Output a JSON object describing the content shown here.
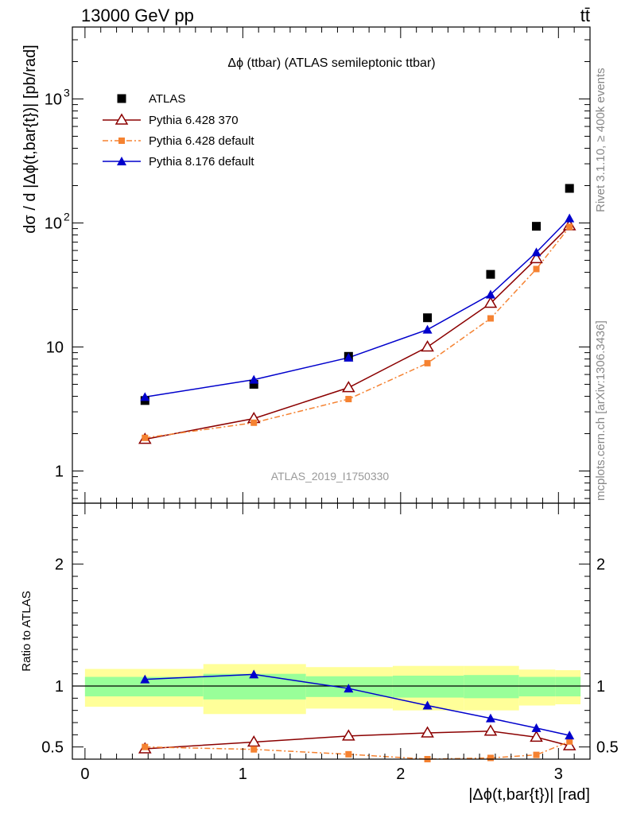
{
  "header": {
    "left_label": "13000 GeV pp",
    "right_label": "tt̄"
  },
  "side_labels": {
    "rivet": "Rivet 3.1.10, ≥ 400k events",
    "mcplots": "mcplots.cern.ch [arXiv:1306.3436]"
  },
  "colors": {
    "data": "#000000",
    "pythia6_370": "#8b0000",
    "pythia6_default": "#f58231",
    "pythia8": "#0000cc",
    "band_outer": "#ffff99",
    "band_inner": "#99ff99"
  },
  "chart_data": [
    {
      "type": "line",
      "panel": "main",
      "title": "Δϕ (ttbar) (ATLAS semileptonic ttbar)",
      "ylabel": "dσ / d |Δϕ(t,bar{t})| [pb/rad]",
      "watermark": "ATLAS_2019_I1750330",
      "yscale": "log",
      "xlim": [
        -0.08,
        3.2
      ],
      "ylim": [
        0.55,
        3800
      ],
      "yticks": [
        {
          "value": 1,
          "label": "1",
          "sup": ""
        },
        {
          "value": 10,
          "label": "10",
          "sup": ""
        },
        {
          "value": 100,
          "label": "10",
          "sup": "2"
        },
        {
          "value": 1000,
          "label": "10",
          "sup": "3"
        }
      ],
      "legend_position": "top-left",
      "series": [
        {
          "name": "ATLAS",
          "marker": "square",
          "x": [
            0.38,
            1.07,
            1.67,
            2.17,
            2.57,
            2.86,
            3.07
          ],
          "values": [
            3.7,
            5.0,
            8.4,
            17.2,
            38.5,
            94,
            190
          ]
        },
        {
          "name": "Pythia 6.428 370",
          "marker": "open-triangle",
          "x": [
            0.38,
            1.07,
            1.67,
            2.17,
            2.57,
            2.86,
            3.07
          ],
          "values": [
            1.8,
            2.65,
            4.7,
            10.0,
            22.5,
            51.5,
            95
          ]
        },
        {
          "name": "Pythia 6.428 default",
          "marker": "small-square",
          "x": [
            0.38,
            1.07,
            1.67,
            2.17,
            2.57,
            2.86,
            3.07
          ],
          "values": [
            1.85,
            2.45,
            3.8,
            7.4,
            17.0,
            42.5,
            93
          ]
        },
        {
          "name": "Pythia 8.176 default",
          "marker": "filled-triangle",
          "x": [
            0.38,
            1.07,
            1.67,
            2.17,
            2.57,
            2.86,
            3.07
          ],
          "values": [
            3.95,
            5.45,
            8.2,
            13.8,
            26.5,
            58,
            109
          ]
        }
      ]
    },
    {
      "type": "line",
      "panel": "ratio",
      "ylabel": "Ratio to ATLAS",
      "xlabel": "|Δϕ(t,bar{t})| [rad]",
      "xlim": [
        -0.08,
        3.2
      ],
      "ylim": [
        0.4,
        2.5
      ],
      "xticks": [
        0,
        1,
        2,
        3
      ],
      "yticks": [
        0.5,
        1,
        2
      ],
      "bins": [
        {
          "x0": 0.0,
          "x1": 0.75,
          "inner_lo": 0.915,
          "inner_hi": 1.075,
          "outer_lo": 0.83,
          "outer_hi": 1.14
        },
        {
          "x0": 0.75,
          "x1": 1.4,
          "inner_lo": 0.89,
          "inner_hi": 1.1,
          "outer_lo": 0.77,
          "outer_hi": 1.18
        },
        {
          "x0": 1.4,
          "x1": 1.95,
          "inner_lo": 0.91,
          "inner_hi": 1.08,
          "outer_lo": 0.815,
          "outer_hi": 1.155
        },
        {
          "x0": 1.95,
          "x1": 2.4,
          "inner_lo": 0.905,
          "inner_hi": 1.085,
          "outer_lo": 0.8,
          "outer_hi": 1.165
        },
        {
          "x0": 2.4,
          "x1": 2.75,
          "inner_lo": 0.9,
          "inner_hi": 1.09,
          "outer_lo": 0.8,
          "outer_hi": 1.165
        },
        {
          "x0": 2.75,
          "x1": 2.98,
          "inner_lo": 0.915,
          "inner_hi": 1.075,
          "outer_lo": 0.84,
          "outer_hi": 1.135
        },
        {
          "x0": 2.98,
          "x1": 3.14,
          "inner_lo": 0.915,
          "inner_hi": 1.075,
          "outer_lo": 0.85,
          "outer_hi": 1.13
        }
      ],
      "series": [
        {
          "name": "Pythia 6.428 370",
          "marker": "open-triangle",
          "x": [
            0.38,
            1.07,
            1.67,
            2.17,
            2.57,
            2.86,
            3.07
          ],
          "values": [
            0.485,
            0.54,
            0.59,
            0.615,
            0.63,
            0.58,
            0.51
          ]
        },
        {
          "name": "Pythia 6.428 default",
          "marker": "small-square",
          "x": [
            0.38,
            1.07,
            1.67,
            2.17,
            2.57,
            2.86,
            3.07
          ],
          "values": [
            0.5,
            0.48,
            0.44,
            0.4,
            0.41,
            0.435,
            0.545
          ]
        },
        {
          "name": "Pythia 8.176 default",
          "marker": "filled-triangle",
          "x": [
            0.38,
            1.07,
            1.67,
            2.17,
            2.57,
            2.86,
            3.07
          ],
          "values": [
            1.055,
            1.095,
            0.98,
            0.84,
            0.735,
            0.655,
            0.595
          ]
        }
      ]
    }
  ]
}
